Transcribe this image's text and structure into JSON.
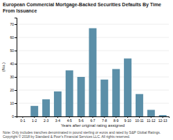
{
  "chart_data": {
    "type": "bar",
    "title": "European Commercial Mortgage-Backed Securities Defaults By Time From Issuance",
    "xlabel": "Years after original rating assigned",
    "ylabel": "(No.)",
    "categories": [
      "0-1",
      "1-2",
      "2-3",
      "3-4",
      "4-5",
      "5-6",
      "6-7",
      "7-8",
      "8-9",
      "9-10",
      "10-11",
      "11-12",
      "12-13"
    ],
    "values": [
      0,
      8,
      13,
      19,
      35,
      30,
      67,
      28,
      36,
      44,
      17,
      5,
      1
    ],
    "color": "#5b8fa8",
    "ylim": [
      0,
      75
    ],
    "yticks": [
      0,
      10,
      20,
      30,
      40,
      50,
      60,
      70
    ],
    "grid": true,
    "annotations": [
      "Note: Only includes tranches denominated in pound sterling or euros and rated by S&P Global Ratings.",
      "Copyright © 2018 by Standard & Poor's Financial Services LLC. All rights reserved."
    ]
  }
}
